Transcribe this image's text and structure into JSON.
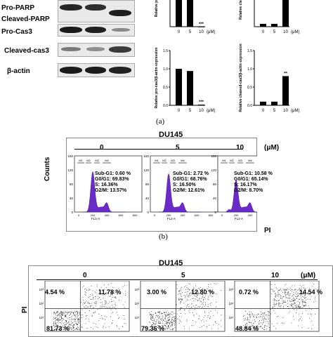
{
  "panel_a": {
    "label": "(a)",
    "blot_labels": [
      "Pro-PARP",
      "Cleaved-PARP",
      "Pro-Cas3",
      "Cleaved-cas3",
      "β-actin"
    ],
    "chart_data": [
      {
        "type": "bar",
        "ylabel": "Relative pro...",
        "categories": [
          "0",
          "5",
          "10"
        ],
        "values": [
          1.0,
          1.0,
          0.0
        ],
        "annotations": [
          "",
          "",
          "***"
        ],
        "xlabel": "(μM)"
      },
      {
        "type": "bar",
        "ylabel": "Relative cleave...",
        "categories": [
          "0",
          "5",
          "10"
        ],
        "values": [
          0.1,
          0.1,
          1.0
        ],
        "annotations": [
          "",
          "",
          ""
        ],
        "xlabel": "(μM)"
      },
      {
        "type": "bar",
        "ylabel": "Relative pro-cas3/β-actin expression",
        "categories": [
          "0",
          "5",
          "10"
        ],
        "values": [
          1.0,
          0.94,
          0.02
        ],
        "annotations": [
          "",
          "",
          "***"
        ],
        "xlabel": "(μM)",
        "ylim": [
          0,
          1.5
        ],
        "yticks": [
          "0.0",
          "0.5",
          "1.0",
          "1.5"
        ]
      },
      {
        "type": "bar",
        "ylabel": "Relative cleaved-cas3/β-actin expression",
        "categories": [
          "0",
          "5",
          "10"
        ],
        "values": [
          0.1,
          0.1,
          0.8
        ],
        "annotations": [
          "",
          "",
          "**"
        ],
        "xlabel": "(μM)",
        "ylim": [
          0,
          1.5
        ],
        "yticks": [
          "0.0",
          "0.5",
          "1.0",
          "1.5"
        ]
      }
    ]
  },
  "panel_b": {
    "label": "(b)",
    "title": "DU145",
    "unit": "(μM)",
    "doses": [
      "0",
      "5",
      "10"
    ],
    "ylabel": "Counts",
    "xlabel": "PI",
    "axis_label": "FL2-A",
    "yticks": [
      "0",
      "40",
      "80",
      "120",
      "160"
    ],
    "gate_labels": [
      "M1",
      "M2",
      "M3",
      "M4",
      "Sub-G1",
      "G0/G1",
      "S",
      "G2/M"
    ],
    "stats": [
      {
        "sub_g1": "Sub-G1: 0.60 %",
        "g0_g1": "G0/G1: 69.83%",
        "s": "S: 16.36%",
        "g2_m": "G2/M: 13.57%"
      },
      {
        "sub_g1": "Sub-G1: 2.72 %",
        "g0_g1": "G0/G1: 68.76%",
        "s": "S: 16.50%",
        "g2_m": "G2/M: 12.61%"
      },
      {
        "sub_g1": "Sub-G1: 10.58 %",
        "g0_g1": "G0/G1: 65.14%",
        "s": "S: 16.17%",
        "g2_m": "G2/M: 8.70%"
      }
    ],
    "histogram_color": "#6a2bc9"
  },
  "panel_c": {
    "title": "DU145",
    "unit": "(μM)",
    "doses": [
      "0",
      "5",
      "10"
    ],
    "ylabel": "PI",
    "quadrants": [
      {
        "ul": "4.54 %",
        "ur": "11.78 %",
        "ll": "81.73 %"
      },
      {
        "ul": "3.00 %",
        "ur": "12.80 %",
        "ll": "79.36 %"
      },
      {
        "ul": "0.72 %",
        "ur": "14.54 %",
        "ll": "48.84 %"
      }
    ]
  }
}
